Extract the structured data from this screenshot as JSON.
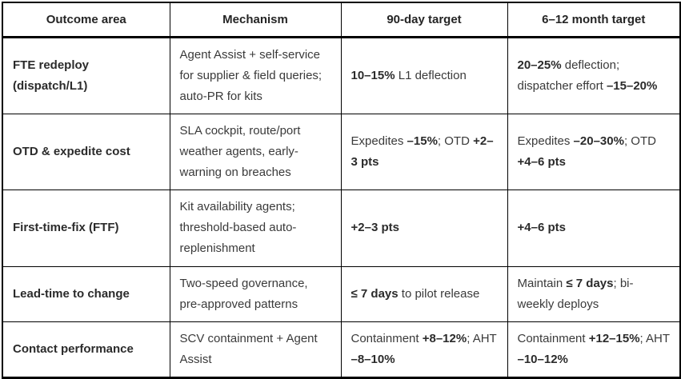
{
  "colors": {
    "border": "#000000",
    "text": "#3a3a3a",
    "bold_text": "#2b2b2b",
    "background": "#ffffff"
  },
  "table": {
    "headers": [
      "Outcome area",
      "Mechanism",
      "90-day target",
      "6–12 month target"
    ],
    "rows": [
      {
        "outcome": [
          {
            "t": "FTE redeploy (dispatch/L1)",
            "b": true
          }
        ],
        "mechanism": [
          {
            "t": "Agent Assist + self-service for supplier & field queries; auto-PR for kits",
            "b": false
          }
        ],
        "t90": [
          {
            "t": "10–15%",
            "b": true
          },
          {
            "t": " L1 deflection",
            "b": false
          }
        ],
        "t612": [
          {
            "t": "20–25%",
            "b": true
          },
          {
            "t": " deflection; dispatcher effort ",
            "b": false
          },
          {
            "t": "–15–20%",
            "b": true
          }
        ]
      },
      {
        "outcome": [
          {
            "t": "OTD & expedite cost",
            "b": true
          }
        ],
        "mechanism": [
          {
            "t": "SLA cockpit, route/port weather agents, early-warning on breaches",
            "b": false
          }
        ],
        "t90": [
          {
            "t": "Expedites ",
            "b": false
          },
          {
            "t": "–15%",
            "b": true
          },
          {
            "t": "; OTD ",
            "b": false
          },
          {
            "t": "+2–3 pts",
            "b": true
          }
        ],
        "t612": [
          {
            "t": "Expedites ",
            "b": false
          },
          {
            "t": "–20–30%",
            "b": true
          },
          {
            "t": "; OTD ",
            "b": false
          },
          {
            "t": "+4–6 pts",
            "b": true
          }
        ]
      },
      {
        "outcome": [
          {
            "t": "First-time-fix (FTF)",
            "b": true
          }
        ],
        "mechanism": [
          {
            "t": "Kit availability agents; threshold-based auto-replenishment",
            "b": false
          }
        ],
        "t90": [
          {
            "t": "+2–3 pts",
            "b": true
          }
        ],
        "t612": [
          {
            "t": "+4–6 pts",
            "b": true
          }
        ]
      },
      {
        "outcome": [
          {
            "t": "Lead-time to change",
            "b": true
          }
        ],
        "mechanism": [
          {
            "t": "Two-speed governance, pre-approved patterns",
            "b": false
          }
        ],
        "t90": [
          {
            "t": "≤ 7 days",
            "b": true
          },
          {
            "t": " to pilot release",
            "b": false
          }
        ],
        "t612": [
          {
            "t": "Maintain ",
            "b": false
          },
          {
            "t": "≤ 7 days",
            "b": true
          },
          {
            "t": "; bi-weekly deploys",
            "b": false
          }
        ]
      },
      {
        "outcome": [
          {
            "t": "Contact performance",
            "b": true
          }
        ],
        "mechanism": [
          {
            "t": "SCV containment + Agent Assist",
            "b": false
          }
        ],
        "t90": [
          {
            "t": "Containment ",
            "b": false
          },
          {
            "t": "+8–12%",
            "b": true
          },
          {
            "t": "; AHT ",
            "b": false
          },
          {
            "t": "–8–10%",
            "b": true
          }
        ],
        "t612": [
          {
            "t": "Containment ",
            "b": false
          },
          {
            "t": "+12–15%",
            "b": true
          },
          {
            "t": "; AHT ",
            "b": false
          },
          {
            "t": "–10–12%",
            "b": true
          }
        ]
      }
    ]
  }
}
